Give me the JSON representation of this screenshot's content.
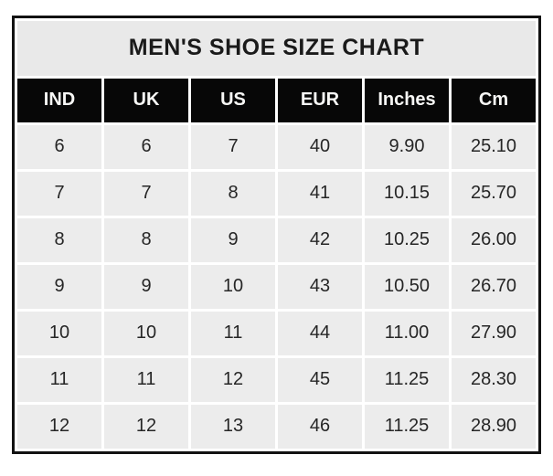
{
  "colors": {
    "border": "#121212",
    "grid_gap": "#ffffff",
    "title_bg": "#e9e9e9",
    "title_text": "#1a1a1a",
    "header_bg": "#070707",
    "header_text": "#f7f7f5",
    "cell_bg": "#ececec",
    "cell_text": "#262626"
  },
  "chart_data": {
    "type": "table",
    "title": "MEN'S SHOE SIZE CHART",
    "columns": [
      "IND",
      "UK",
      "US",
      "EUR",
      "Inches",
      "Cm"
    ],
    "rows": [
      [
        "6",
        "6",
        "7",
        "40",
        "9.90",
        "25.10"
      ],
      [
        "7",
        "7",
        "8",
        "41",
        "10.15",
        "25.70"
      ],
      [
        "8",
        "8",
        "9",
        "42",
        "10.25",
        "26.00"
      ],
      [
        "9",
        "9",
        "10",
        "43",
        "10.50",
        "26.70"
      ],
      [
        "10",
        "10",
        "11",
        "44",
        "11.00",
        "27.90"
      ],
      [
        "11",
        "11",
        "12",
        "45",
        "11.25",
        "28.30"
      ],
      [
        "12",
        "12",
        "13",
        "46",
        "11.25",
        "28.90"
      ]
    ]
  }
}
